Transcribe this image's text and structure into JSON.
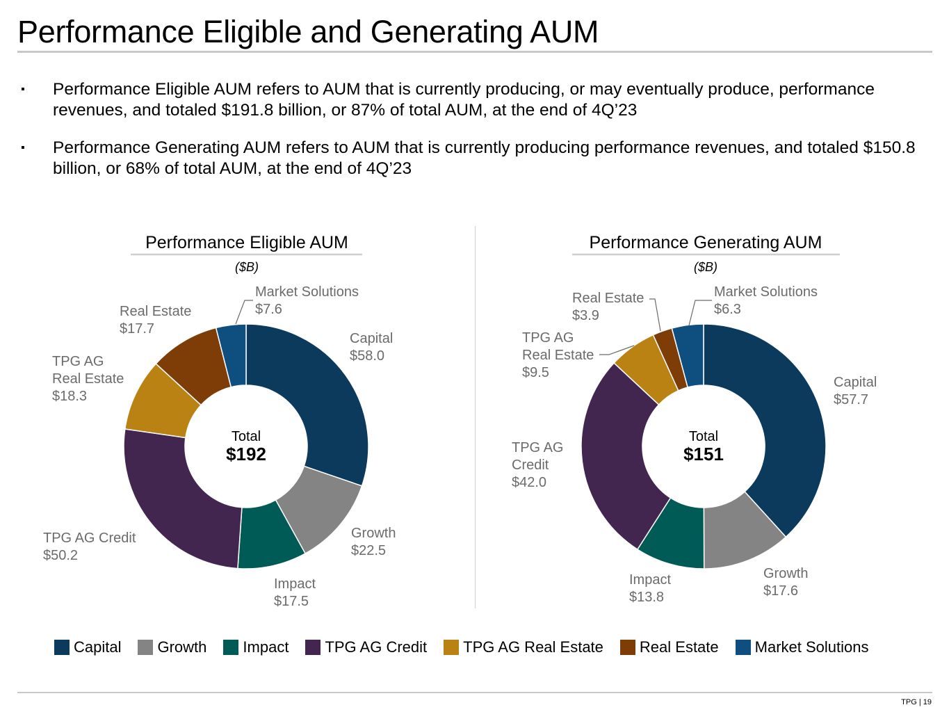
{
  "title": "Performance Eligible and Generating AUM",
  "bullets": [
    "Performance Eligible AUM refers to AUM that is currently producing, or may eventually produce, performance revenues, and totaled $191.8 billion, or 87% of total AUM, at the end of 4Q’23",
    "Performance Generating AUM refers to AUM that is currently producing performance revenues, and totaled $150.8 billion, or 68% of total AUM, at the end of 4Q’23"
  ],
  "bullet_char": "▪",
  "colors": {
    "Capital": "#0b3a5d",
    "Growth": "#848484",
    "Impact": "#005a55",
    "TPG AG Credit": "#42264f",
    "TPG AG Real Estate": "#b98212",
    "Real Estate": "#7e3c06",
    "Market Solutions": "#0f4f80",
    "label_text": "#6b6b6b"
  },
  "legend": [
    {
      "key": "Capital",
      "label": "Capital"
    },
    {
      "key": "Growth",
      "label": "Growth"
    },
    {
      "key": "Impact",
      "label": "Impact"
    },
    {
      "key": "TPG AG Credit",
      "label": "TPG AG Credit"
    },
    {
      "key": "TPG AG Real Estate",
      "label": "TPG AG Real Estate"
    },
    {
      "key": "Real Estate",
      "label": "Real Estate"
    },
    {
      "key": "Market Solutions",
      "label": "Market Solutions"
    }
  ],
  "chart_data": [
    {
      "type": "pie",
      "title": "Performance Eligible AUM",
      "subtitle": "($B)",
      "center_label": "Total",
      "center_value": "$192",
      "categories": [
        "Capital",
        "Growth",
        "Impact",
        "TPG AG Credit",
        "TPG AG Real Estate",
        "Real Estate",
        "Market Solutions"
      ],
      "values": [
        58.0,
        22.5,
        17.5,
        50.2,
        18.3,
        17.7,
        7.6
      ],
      "labels": [
        [
          "Capital",
          "$58.0"
        ],
        [
          "Growth",
          "$22.5"
        ],
        [
          "Impact",
          "$17.5"
        ],
        [
          "TPG AG Credit",
          "$50.2"
        ],
        [
          "TPG AG",
          "Real Estate",
          "$18.3"
        ],
        [
          "Real Estate",
          "$17.7"
        ],
        [
          "Market Solutions",
          "$7.6"
        ]
      ]
    },
    {
      "type": "pie",
      "title": "Performance Generating AUM",
      "subtitle": "($B)",
      "center_label": "Total",
      "center_value": "$151",
      "categories": [
        "Capital",
        "Growth",
        "Impact",
        "TPG AG Credit",
        "TPG AG Real Estate",
        "Real Estate",
        "Market Solutions"
      ],
      "values": [
        57.7,
        17.6,
        13.8,
        42.0,
        9.5,
        3.9,
        6.3
      ],
      "labels": [
        [
          "Capital",
          "$57.7"
        ],
        [
          "Growth",
          "$17.6"
        ],
        [
          "Impact",
          "$13.8"
        ],
        [
          "TPG AG",
          "Credit",
          "$42.0"
        ],
        [
          "TPG AG",
          "Real Estate",
          "$9.5"
        ],
        [
          "Real Estate",
          "$3.9"
        ],
        [
          "Market Solutions",
          "$6.3"
        ]
      ]
    }
  ],
  "footer": "TPG | 19"
}
